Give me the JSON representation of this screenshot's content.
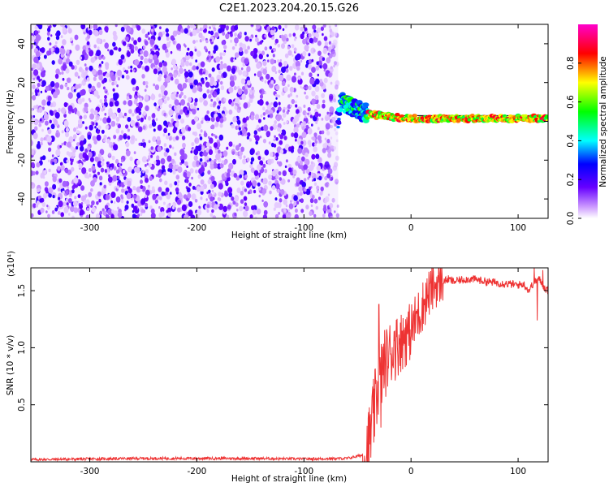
{
  "figure": {
    "title": "C2E1.2023.204.20.15.G26"
  },
  "chart_data": [
    {
      "type": "heatmap",
      "xlabel": "Height of straight line (km)",
      "ylabel": "Frequency (Hz)",
      "xlim": [
        -355,
        128
      ],
      "ylim": [
        -50,
        50
      ],
      "xticks": [
        -300,
        -200,
        -100,
        0,
        100
      ],
      "yticks": [
        -40,
        -20,
        0,
        20,
        40
      ],
      "colorbar": {
        "label": "Normalized spectral amplitude",
        "range": [
          0.0,
          1.0
        ],
        "ticks": [
          0.0,
          0.2,
          0.4,
          0.6,
          0.8
        ],
        "tick_labels": [
          "0.0",
          "0.2",
          "0.4",
          "0.6",
          "0.8"
        ],
        "colors": [
          "#ffffff",
          "#cc99ff",
          "#6600ff",
          "#0000ff",
          "#00ffff",
          "#00ff00",
          "#ffff00",
          "#ff0000",
          "#ff00cc"
        ]
      },
      "regions": [
        {
          "x_range": [
            -355,
            -68
          ],
          "freq_range": [
            -50,
            50
          ],
          "amplitude_range": [
            0.0,
            0.2
          ],
          "description": "noise"
        },
        {
          "x_range": [
            -68,
            -40
          ],
          "freq_center": 10,
          "amplitude_range": [
            0.2,
            0.6
          ]
        },
        {
          "x_range": [
            -40,
            128
          ],
          "freq_center": 2,
          "amplitude_range": [
            0.5,
            0.9
          ]
        }
      ],
      "signal_track": [
        [
          -66,
          11
        ],
        [
          -58,
          8
        ],
        [
          -50,
          6
        ],
        [
          -40,
          4
        ],
        [
          -30,
          3
        ],
        [
          -15,
          2
        ],
        [
          0,
          1.5
        ],
        [
          60,
          1.5
        ],
        [
          90,
          1.5
        ],
        [
          128,
          1.5
        ]
      ]
    },
    {
      "type": "line",
      "xlabel": "Height of straight line (km)",
      "ylabel": "SNR (10 * v/v)",
      "y_multiplier": "(x10⁴)",
      "xlim": [
        -355,
        128
      ],
      "ylim": [
        0,
        1.7
      ],
      "xticks": [
        -300,
        -200,
        -100,
        0,
        100
      ],
      "yticks": [
        0.5,
        1.0,
        1.5
      ],
      "ytick_labels": [
        "0.5",
        "1.0",
        "1.5"
      ],
      "series": [
        {
          "color": "#ee3333",
          "x": [
            -355,
            -300,
            -250,
            -200,
            -150,
            -100,
            -60,
            -45,
            -40,
            -35,
            -30,
            -25,
            -20,
            -15,
            -10,
            -5,
            0,
            5,
            10,
            15,
            20,
            25,
            30,
            35,
            40,
            50,
            60,
            70,
            80,
            90,
            100,
            105,
            110,
            115,
            120,
            125,
            128
          ],
          "y": [
            0.02,
            0.025,
            0.03,
            0.03,
            0.03,
            0.025,
            0.03,
            0.06,
            0.12,
            0.4,
            0.7,
            0.85,
            0.95,
            1.0,
            1.05,
            1.1,
            1.15,
            1.25,
            1.35,
            1.45,
            1.52,
            1.56,
            1.58,
            1.6,
            1.58,
            1.6,
            1.6,
            1.58,
            1.57,
            1.56,
            1.55,
            1.56,
            1.5,
            1.58,
            1.6,
            1.52,
            1.5
          ]
        }
      ],
      "spikes": [
        [
          -30,
          1.38
        ],
        [
          -28,
          0.3
        ],
        [
          -22,
          1.08
        ],
        [
          -15,
          1.15
        ],
        [
          -10,
          1.22
        ],
        [
          -5,
          1.25
        ],
        [
          5,
          1.32
        ],
        [
          115,
          1.7
        ],
        [
          118,
          1.24
        ],
        [
          123,
          1.68
        ]
      ]
    }
  ]
}
